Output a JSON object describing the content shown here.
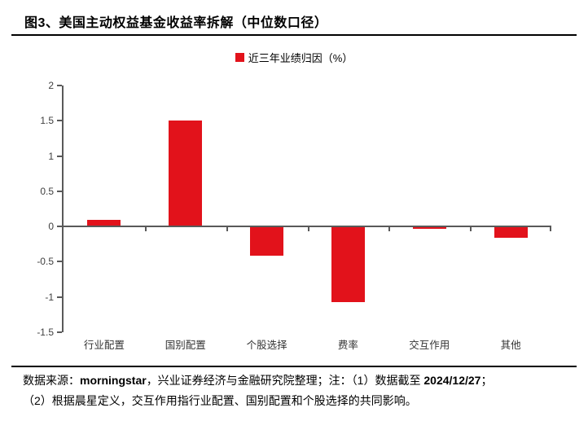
{
  "header": {
    "title": "图3、美国主动权益基金收益率拆解（中位数口径）"
  },
  "legend": {
    "label": "近三年业绩归因（%）"
  },
  "colors": {
    "bar_red": "#E2121B",
    "axis_gray": "#595959"
  },
  "chart_data": {
    "type": "bar",
    "title": "图3、美国主动权益基金收益率拆解（中位数口径）",
    "series_name": "近三年业绩归因（%）",
    "categories": [
      "行业配置",
      "国别配置",
      "个股选择",
      "费率",
      "交互作用",
      "其他"
    ],
    "values": [
      0.1,
      1.51,
      -0.4,
      -1.06,
      -0.02,
      -0.15
    ],
    "xlabel": "",
    "ylabel": "",
    "ylim": [
      -1.5,
      2
    ],
    "y_ticks": [
      2,
      1.5,
      1,
      0.5,
      0,
      -0.5,
      -1,
      -1.5
    ],
    "bar_color": "#E2121B",
    "grid": false,
    "legend_position": "top-center"
  },
  "footnote": {
    "line1_prefix": "数据来源：",
    "line1_source": "morningstar",
    "line1_mid": "，兴业证券经济与金融研究院整理；注：（1）数据截至 ",
    "line1_date": "2024/12/27",
    "line1_suffix": "；",
    "line2": "（2）根据晨星定义，交互作用指行业配置、国别配置和个股选择的共同影响。"
  }
}
